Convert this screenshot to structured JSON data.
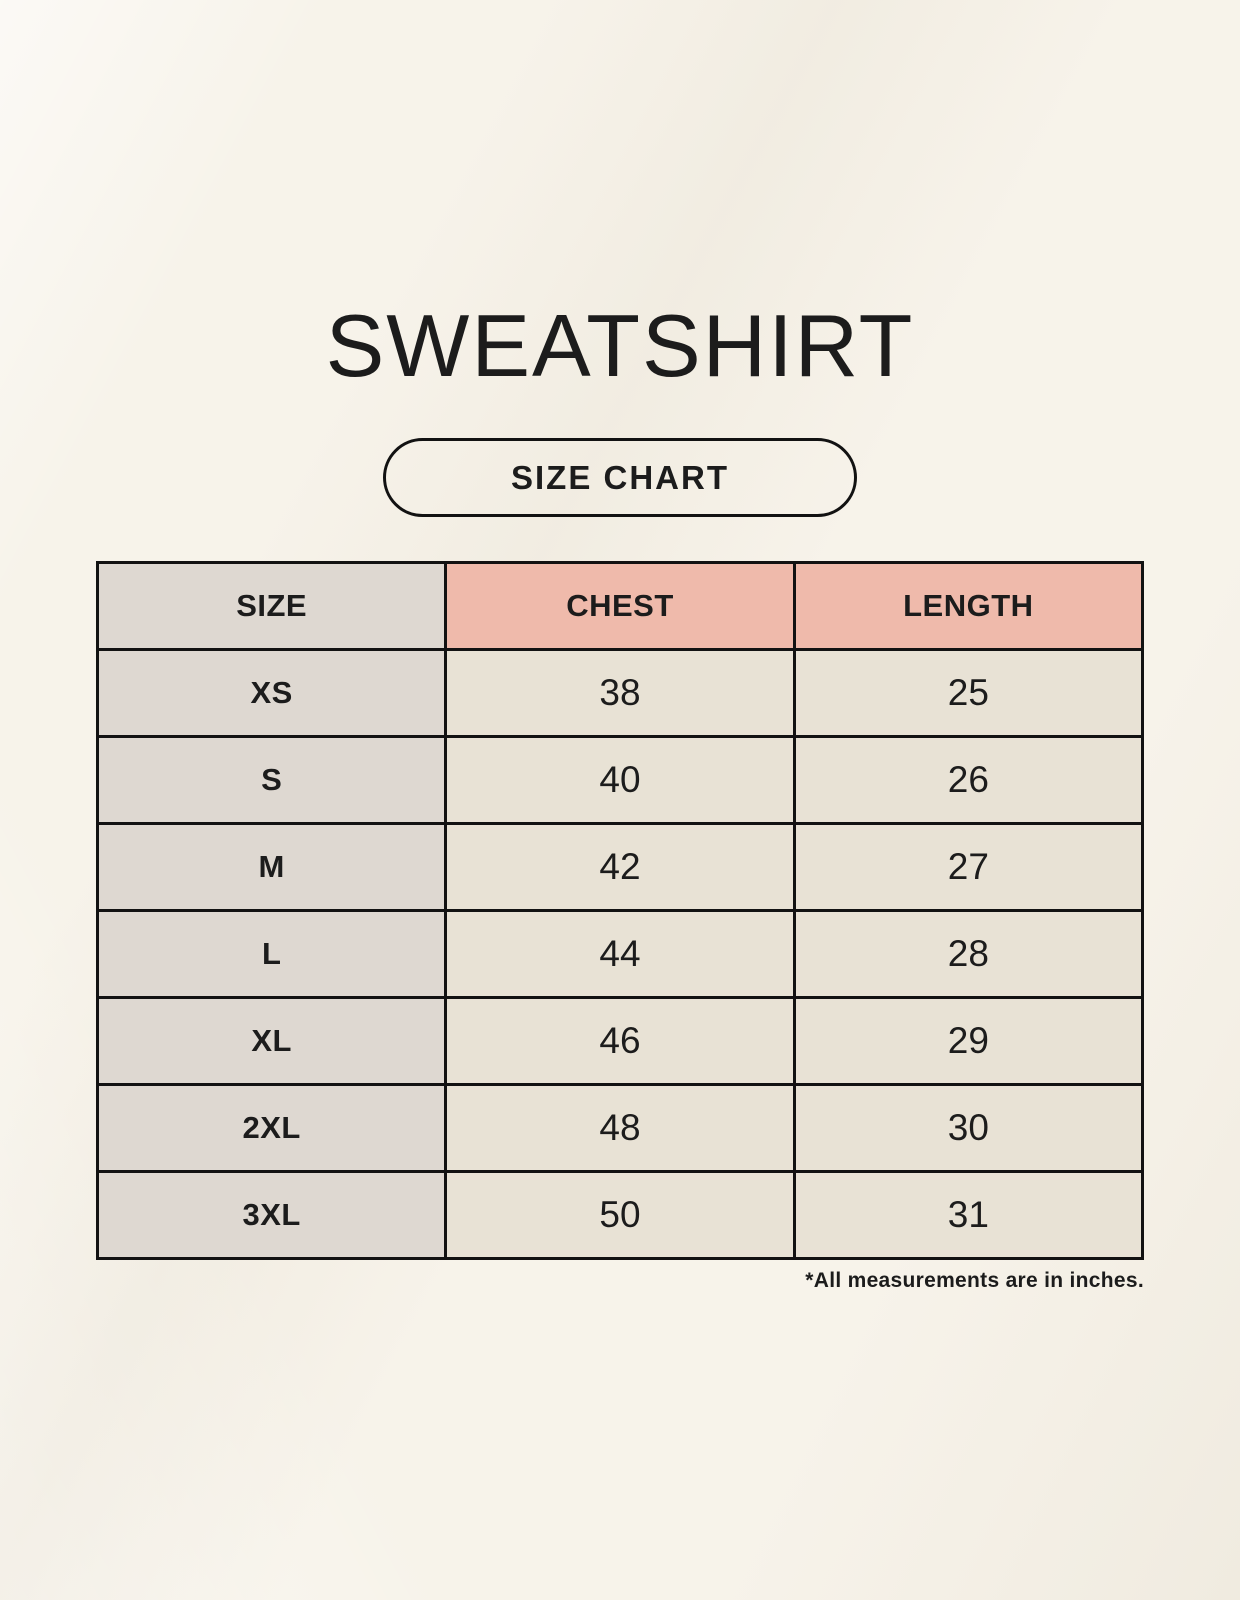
{
  "page": {
    "title": "SWEATSHIRT",
    "badge_label": "SIZE CHART",
    "footnote": "*All measurements are in inches."
  },
  "colors": {
    "page_bg": "#F7F3EA",
    "size_col_bg": "#DED8D1",
    "accent_header_bg": "#EFBAAB",
    "cell_bg": "#E8E2D5",
    "border_color": "#121212",
    "text_color": "#1C1C1C"
  },
  "chart_data": {
    "type": "table",
    "title": "SWEATSHIRT",
    "subtitle": "SIZE CHART",
    "columns": [
      "SIZE",
      "CHEST",
      "LENGTH"
    ],
    "rows": [
      {
        "size": "XS",
        "chest": "38",
        "length": "25"
      },
      {
        "size": "S",
        "chest": "40",
        "length": "26"
      },
      {
        "size": "M",
        "chest": "42",
        "length": "27"
      },
      {
        "size": "L",
        "chest": "44",
        "length": "28"
      },
      {
        "size": "XL",
        "chest": "46",
        "length": "29"
      },
      {
        "size": "2XL",
        "chest": "48",
        "length": "30"
      },
      {
        "size": "3XL",
        "chest": "50",
        "length": "31"
      }
    ],
    "units": "inches",
    "annotations": [
      "*All measurements are in inches."
    ]
  }
}
